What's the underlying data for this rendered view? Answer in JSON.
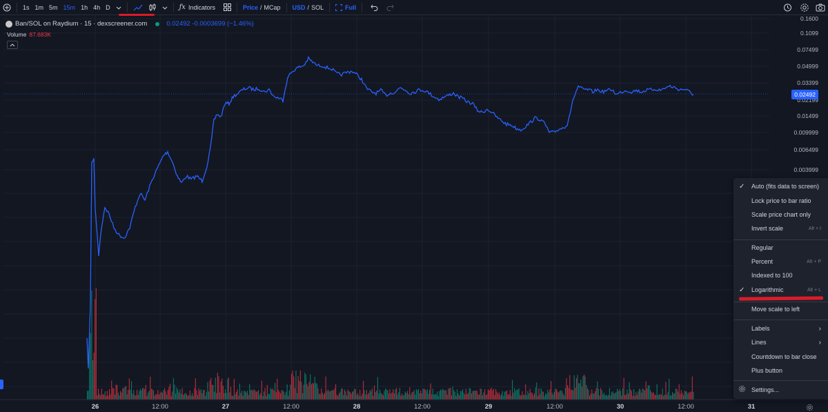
{
  "toolbar": {
    "intervals": [
      "1s",
      "1m",
      "5m",
      "15m",
      "1h",
      "4h",
      "D"
    ],
    "active_interval": "15m",
    "indicators_label": "Indicators",
    "price_label": "Price",
    "mcap_label": "MCap",
    "usd_label": "USD",
    "sol_label": "SOL",
    "full_label": "Full",
    "separator": "/"
  },
  "legend": {
    "symbol": "Ban/SOL on Raydium · 15 · dexscreener.com",
    "values": "0.02492 -0.0003699 (−1.46%)",
    "volume_label": "Volume",
    "volume_value": "87.683K"
  },
  "price_axis": {
    "labels": [
      "0.1600",
      "0.1099",
      "0.07499",
      "0.04999",
      "0.03399",
      "0.02199",
      "0.01499",
      "0.009999",
      "0.006499",
      "0.003999"
    ],
    "current": "0.02492"
  },
  "time_axis": {
    "labels": [
      "26",
      "12:00",
      "27",
      "12:00",
      "28",
      "12:00",
      "29",
      "12:00",
      "30",
      "12:00",
      "31"
    ]
  },
  "menu": {
    "items": [
      {
        "label": "Auto (fits data to screen)",
        "hotkey": "",
        "checked": true
      },
      {
        "label": "Lock price to bar ratio",
        "hotkey": ""
      },
      {
        "label": "Scale price chart only",
        "hotkey": ""
      },
      {
        "label": "Invert scale",
        "hotkey": "Alt + I"
      },
      {
        "label": "Regular",
        "hotkey": ""
      },
      {
        "label": "Percent",
        "hotkey": "Alt + P"
      },
      {
        "label": "Indexed to 100",
        "hotkey": ""
      },
      {
        "label": "Logarithmic",
        "hotkey": "Alt + L",
        "checked": true
      },
      {
        "label": "Move scale to left",
        "hotkey": ""
      },
      {
        "label": "Labels",
        "hotkey": ""
      },
      {
        "label": "Lines",
        "hotkey": ""
      },
      {
        "label": "Countdown to bar close",
        "hotkey": ""
      },
      {
        "label": "Plus button",
        "hotkey": ""
      },
      {
        "label": "Settings...",
        "hotkey": ""
      }
    ]
  },
  "colors": {
    "line": "#2962ff",
    "vol_up": "#089981",
    "vol_down": "#f23645",
    "highlight": "#d91c2a"
  }
}
